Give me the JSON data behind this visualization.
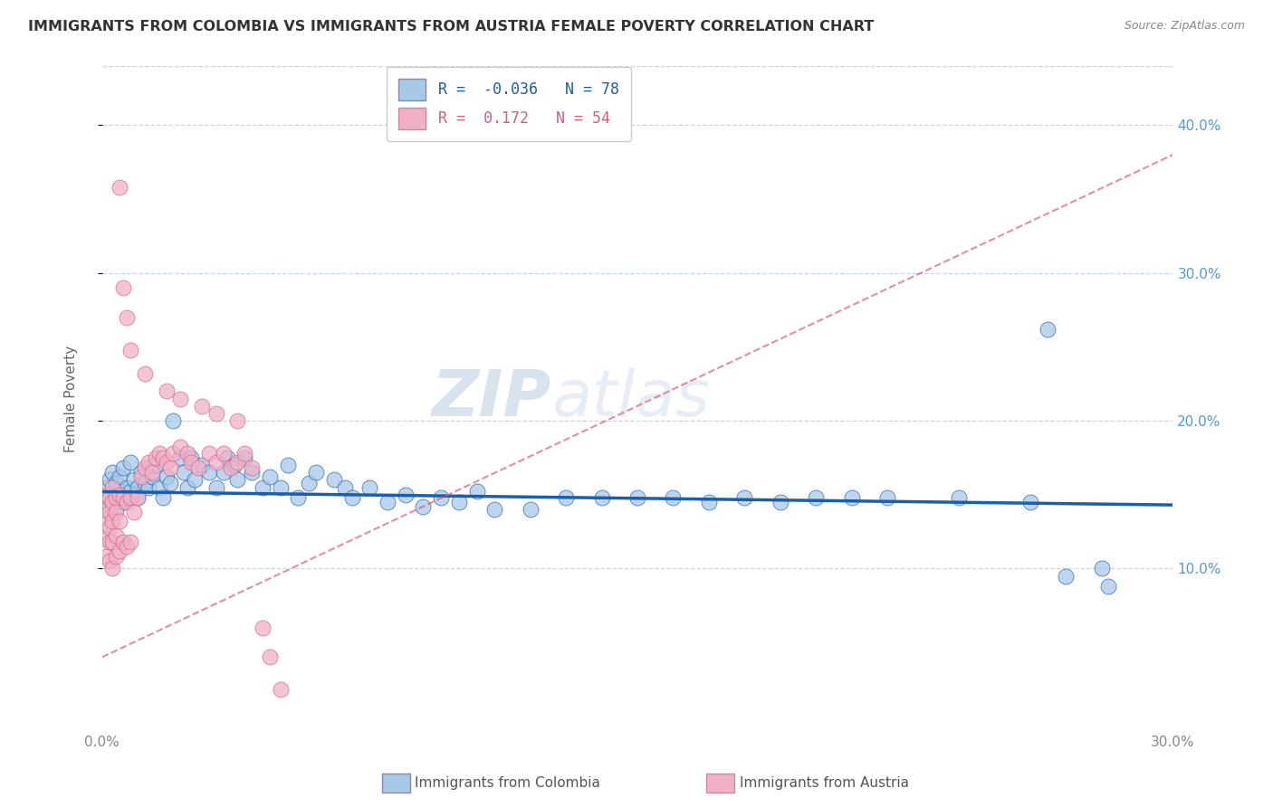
{
  "title": "IMMIGRANTS FROM COLOMBIA VS IMMIGRANTS FROM AUSTRIA FEMALE POVERTY CORRELATION CHART",
  "source": "Source: ZipAtlas.com",
  "ylabel": "Female Poverty",
  "xlim": [
    0.0,
    0.3
  ],
  "ylim": [
    -0.01,
    0.44
  ],
  "yticks": [
    0.1,
    0.2,
    0.3,
    0.4
  ],
  "ytick_labels": [
    "10.0%",
    "20.0%",
    "30.0%",
    "40.0%"
  ],
  "xtick_labels": [
    "0.0%",
    "30.0%"
  ],
  "xtick_positions": [
    0.0,
    0.3
  ],
  "colombia_color": "#a8c8e8",
  "austria_color": "#f0b0c8",
  "colombia_line_color": "#1a5fa8",
  "austria_line_color": "#d06080",
  "colombia_R": -0.036,
  "colombia_N": 78,
  "austria_R": 0.172,
  "austria_N": 54,
  "legend_label_colombia": "Immigrants from Colombia",
  "legend_label_austria": "Immigrants from Austria",
  "watermark_zip": "ZIP",
  "watermark_atlas": "atlas",
  "background_color": "#ffffff",
  "grid_color": "#c8d4e4",
  "colombia_points_x": [
    0.001,
    0.001,
    0.002,
    0.002,
    0.003,
    0.003,
    0.004,
    0.004,
    0.005,
    0.005,
    0.006,
    0.006,
    0.007,
    0.007,
    0.008,
    0.008,
    0.009,
    0.01,
    0.01,
    0.011,
    0.012,
    0.013,
    0.014,
    0.015,
    0.016,
    0.017,
    0.018,
    0.019,
    0.02,
    0.022,
    0.023,
    0.024,
    0.025,
    0.026,
    0.028,
    0.03,
    0.032,
    0.034,
    0.035,
    0.037,
    0.038,
    0.04,
    0.042,
    0.045,
    0.047,
    0.05,
    0.052,
    0.055,
    0.058,
    0.06,
    0.065,
    0.068,
    0.07,
    0.075,
    0.08,
    0.085,
    0.09,
    0.095,
    0.1,
    0.105,
    0.11,
    0.12,
    0.13,
    0.14,
    0.15,
    0.16,
    0.17,
    0.18,
    0.19,
    0.2,
    0.21,
    0.22,
    0.24,
    0.26,
    0.265,
    0.27,
    0.28,
    0.282
  ],
  "colombia_points_y": [
    0.155,
    0.148,
    0.16,
    0.142,
    0.165,
    0.145,
    0.158,
    0.14,
    0.162,
    0.15,
    0.168,
    0.145,
    0.155,
    0.148,
    0.172,
    0.152,
    0.16,
    0.155,
    0.148,
    0.165,
    0.158,
    0.155,
    0.162,
    0.17,
    0.155,
    0.148,
    0.162,
    0.158,
    0.2,
    0.175,
    0.165,
    0.155,
    0.175,
    0.16,
    0.17,
    0.165,
    0.155,
    0.165,
    0.175,
    0.17,
    0.16,
    0.175,
    0.165,
    0.155,
    0.162,
    0.155,
    0.17,
    0.148,
    0.158,
    0.165,
    0.16,
    0.155,
    0.148,
    0.155,
    0.145,
    0.15,
    0.142,
    0.148,
    0.145,
    0.152,
    0.14,
    0.14,
    0.148,
    0.148,
    0.148,
    0.148,
    0.145,
    0.148,
    0.145,
    0.148,
    0.148,
    0.148,
    0.148,
    0.145,
    0.262,
    0.095,
    0.1,
    0.088
  ],
  "austria_points_x": [
    0.001,
    0.001,
    0.001,
    0.001,
    0.001,
    0.002,
    0.002,
    0.002,
    0.002,
    0.002,
    0.003,
    0.003,
    0.003,
    0.003,
    0.003,
    0.004,
    0.004,
    0.004,
    0.004,
    0.005,
    0.005,
    0.005,
    0.006,
    0.006,
    0.007,
    0.007,
    0.008,
    0.008,
    0.009,
    0.01,
    0.011,
    0.012,
    0.013,
    0.014,
    0.015,
    0.016,
    0.017,
    0.018,
    0.019,
    0.02,
    0.022,
    0.024,
    0.025,
    0.027,
    0.03,
    0.032,
    0.034,
    0.036,
    0.038,
    0.04,
    0.042,
    0.045,
    0.047,
    0.05
  ],
  "austria_points_y": [
    0.15,
    0.14,
    0.13,
    0.12,
    0.108,
    0.148,
    0.138,
    0.128,
    0.118,
    0.105,
    0.155,
    0.145,
    0.132,
    0.118,
    0.1,
    0.148,
    0.138,
    0.122,
    0.108,
    0.15,
    0.132,
    0.112,
    0.148,
    0.118,
    0.145,
    0.115,
    0.148,
    0.118,
    0.138,
    0.148,
    0.162,
    0.168,
    0.172,
    0.165,
    0.175,
    0.178,
    0.175,
    0.172,
    0.168,
    0.178,
    0.182,
    0.178,
    0.172,
    0.168,
    0.178,
    0.172,
    0.178,
    0.168,
    0.172,
    0.178,
    0.168,
    0.06,
    0.04,
    0.018
  ],
  "austria_outliers_x": [
    0.005,
    0.006,
    0.007,
    0.008,
    0.012,
    0.018,
    0.022,
    0.028,
    0.032,
    0.038
  ],
  "austria_outliers_y": [
    0.358,
    0.29,
    0.27,
    0.248,
    0.232,
    0.22,
    0.215,
    0.21,
    0.205,
    0.2
  ]
}
